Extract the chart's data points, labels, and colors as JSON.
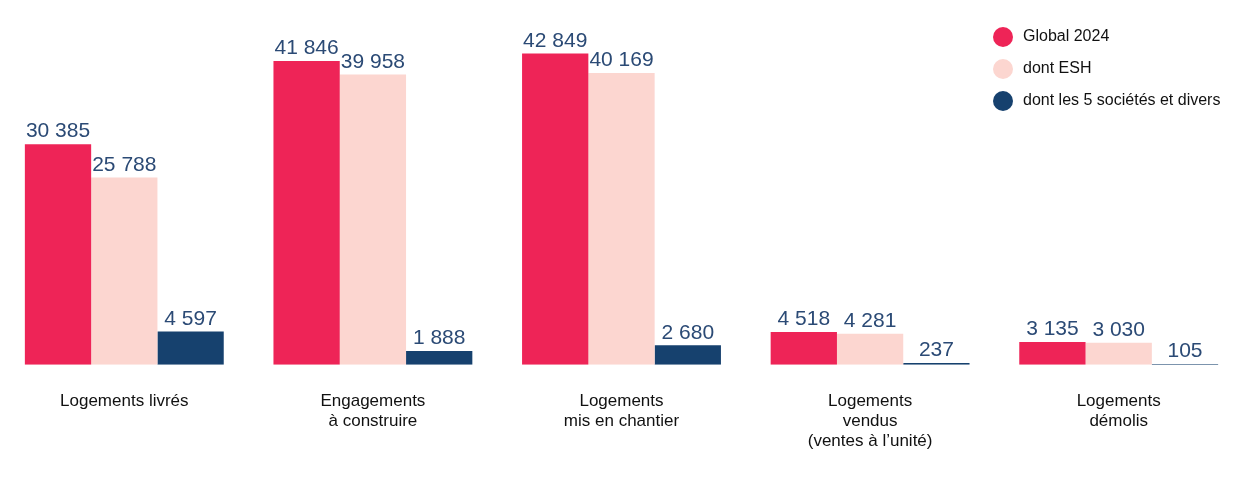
{
  "chart_data": {
    "type": "bar",
    "categories": [
      "Logements livrés",
      "Engagements\nà construire",
      "Logements\nmis en chantier",
      "Logements\nvendus\n(ventes à l’unité)",
      "Logements\ndémolis"
    ],
    "series": [
      {
        "name": "Global 2024",
        "color": "#ee2457",
        "values": [
          30385,
          41846,
          42849,
          4518,
          3135
        ]
      },
      {
        "name": "dont ESH",
        "color": "#fcd6d0",
        "values": [
          25788,
          39958,
          40169,
          4281,
          3030
        ]
      },
      {
        "name": "dont les 5 sociétés et divers",
        "color": "#16416e",
        "values": [
          4597,
          1888,
          2680,
          237,
          105
        ]
      }
    ],
    "data_labels": true,
    "legend": "top right",
    "grid": false
  }
}
